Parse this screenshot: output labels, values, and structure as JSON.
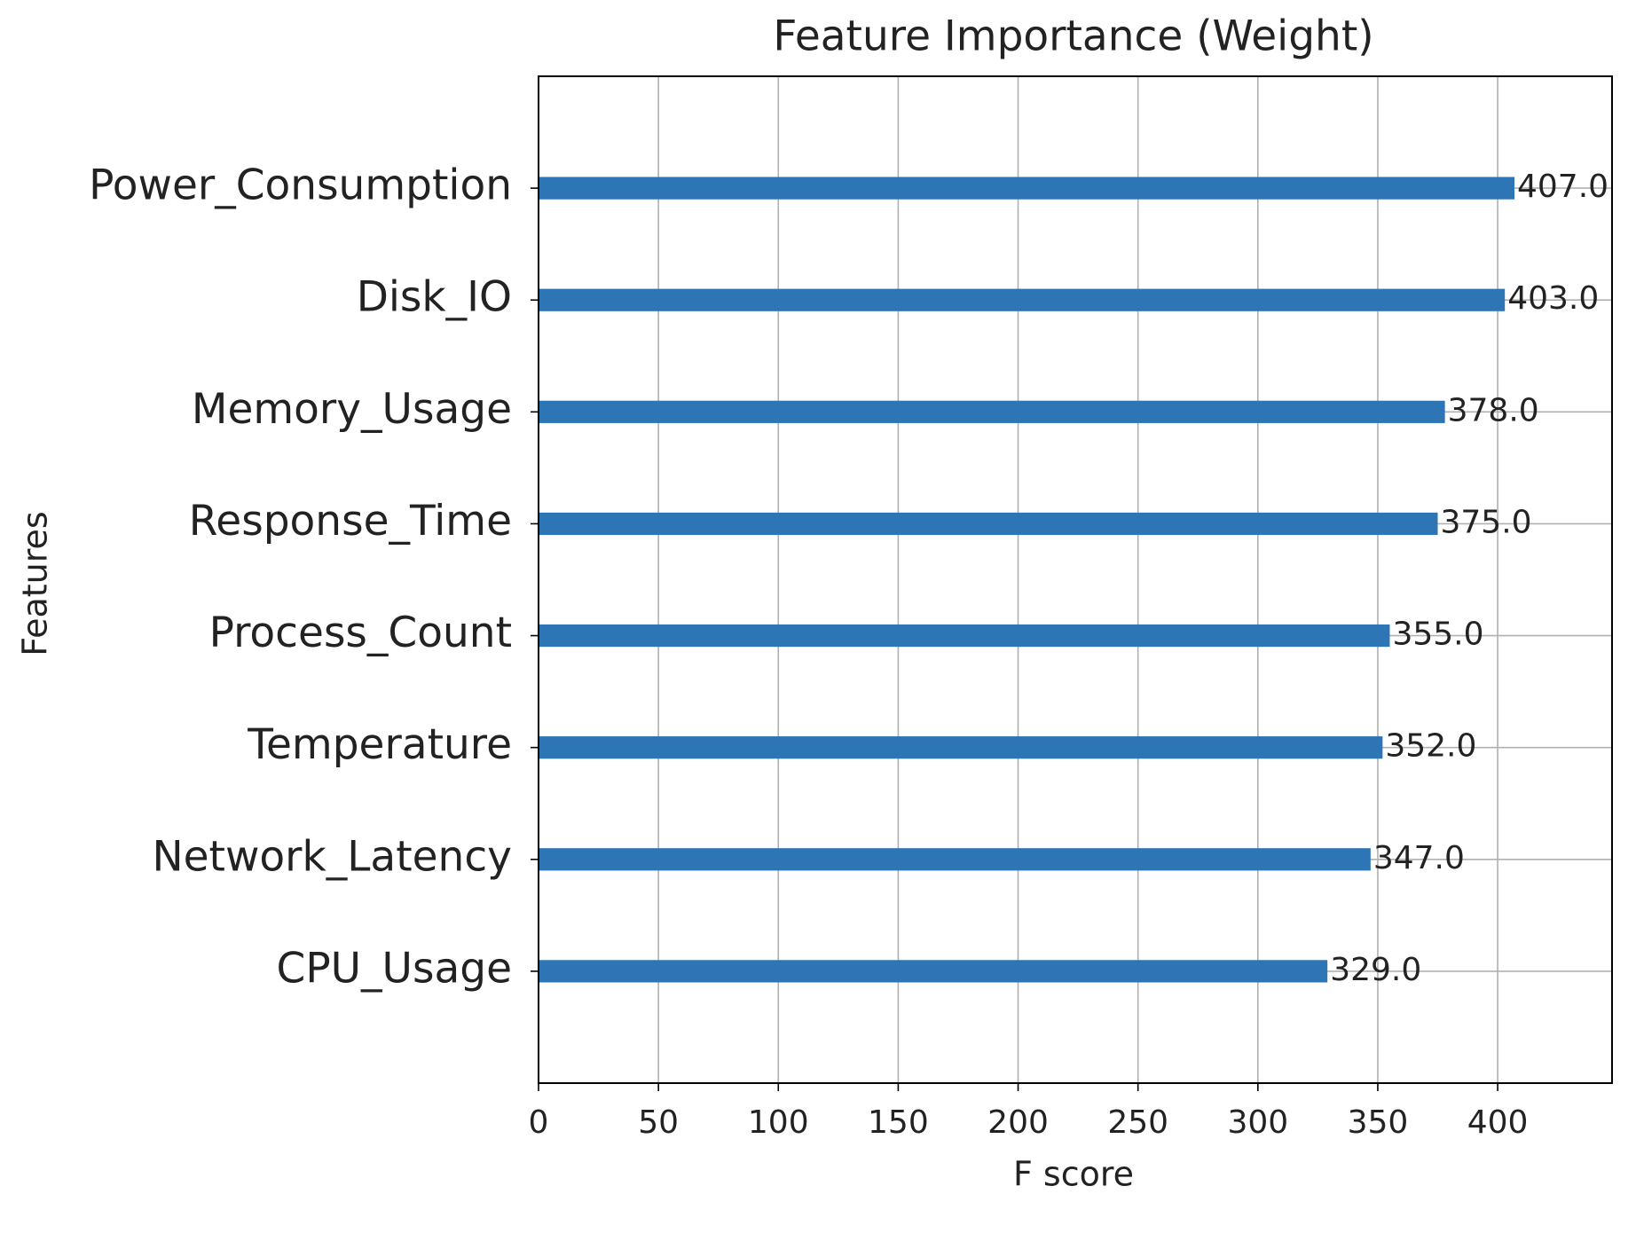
{
  "chart_data": {
    "type": "barh",
    "title": "Feature Importance (Weight)",
    "xlabel": "F score",
    "ylabel": "Features",
    "categories": [
      "Power_Consumption",
      "Disk_IO",
      "Memory_Usage",
      "Response_Time",
      "Process_Count",
      "Temperature",
      "Network_Latency",
      "CPU_Usage"
    ],
    "values": [
      407,
      403,
      378,
      375,
      355,
      352,
      347,
      329
    ],
    "value_labels": [
      "407.0",
      "403.0",
      "378.0",
      "375.0",
      "355.0",
      "352.0",
      "347.0",
      "329.0"
    ],
    "color": "#2e75b6",
    "xlim": [
      0,
      447.7
    ],
    "xticks": [
      0,
      50,
      100,
      150,
      200,
      250,
      300,
      350,
      400
    ],
    "grid": true
  }
}
